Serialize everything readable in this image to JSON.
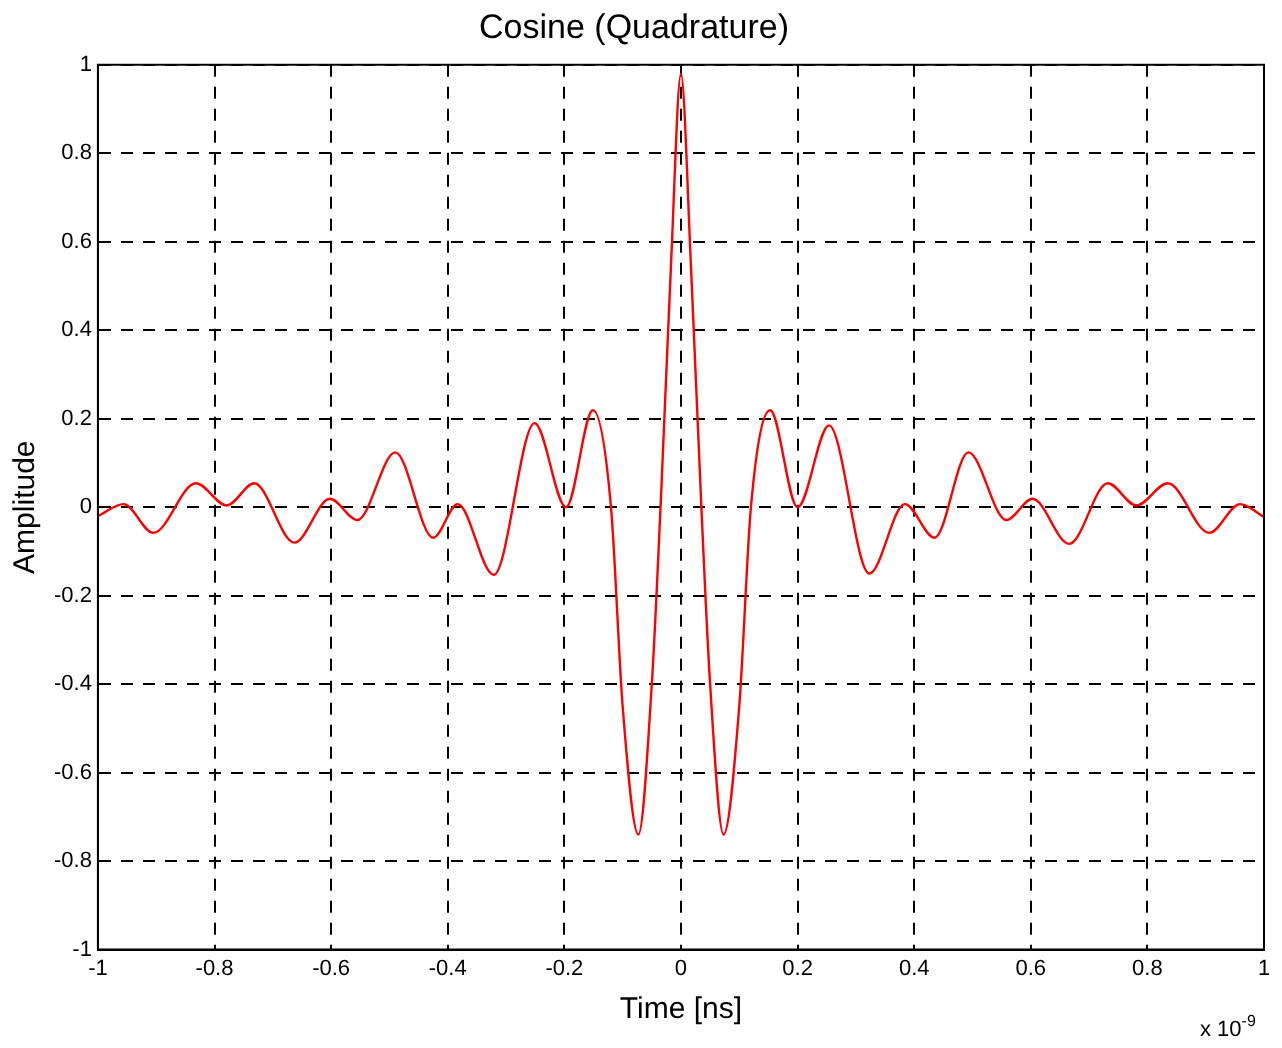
{
  "chart_data": {
    "type": "line",
    "title": "Cosine (Quadrature)",
    "xlabel": "Time [ns]",
    "ylabel": "Amplitude",
    "annotations": [
      "x 10$^{-9}$"
    ],
    "x": [
      -1,
      -0.956,
      -0.905,
      -0.832,
      -0.779,
      -0.732,
      -0.663,
      -0.602,
      -0.555,
      -0.49,
      -0.425,
      -0.383,
      -0.321,
      -0.251,
      -0.197,
      -0.151,
      -0.12,
      -0.1,
      -0.073,
      -0.05,
      -0.035,
      -0.017,
      0,
      0.017,
      0.035,
      0.05,
      0.073,
      0.1,
      0.12,
      0.153,
      0.2,
      0.254,
      0.323,
      0.384,
      0.435,
      0.493,
      0.558,
      0.603,
      0.666,
      0.732,
      0.781,
      0.835,
      0.906,
      0.959,
      1
    ],
    "series": [
      {
        "color": "#ff0000",
        "values": [
          -0.02,
          0.007,
          -0.058,
          0.054,
          0.004,
          0.054,
          -0.08,
          0.019,
          -0.029,
          0.124,
          -0.069,
          0.007,
          -0.153,
          0.19,
          0,
          0.219,
          0,
          -0.45,
          -0.74,
          -0.4,
          0,
          0.55,
          0.98,
          0.55,
          0,
          -0.4,
          -0.74,
          -0.45,
          0,
          0.219,
          0,
          0.185,
          -0.15,
          0.007,
          -0.069,
          0.124,
          -0.029,
          0.019,
          -0.083,
          0.054,
          0.004,
          0.054,
          -0.058,
          0.007,
          -0.022
        ]
      }
    ],
    "xlim": [
      -1,
      1
    ],
    "xticks": [
      -1,
      -0.8,
      -0.6,
      -0.4,
      -0.2,
      0,
      0.2,
      0.4,
      0.6,
      0.8,
      1
    ],
    "ylim": [
      -1,
      1
    ],
    "yticks": [
      -1,
      -0.8,
      -0.6,
      -0.4,
      -0.2,
      0,
      0.2,
      0.4,
      0.6,
      0.8,
      1
    ],
    "grid": true,
    "legend": false,
    "marker": "none",
    "line_style": "solid"
  }
}
